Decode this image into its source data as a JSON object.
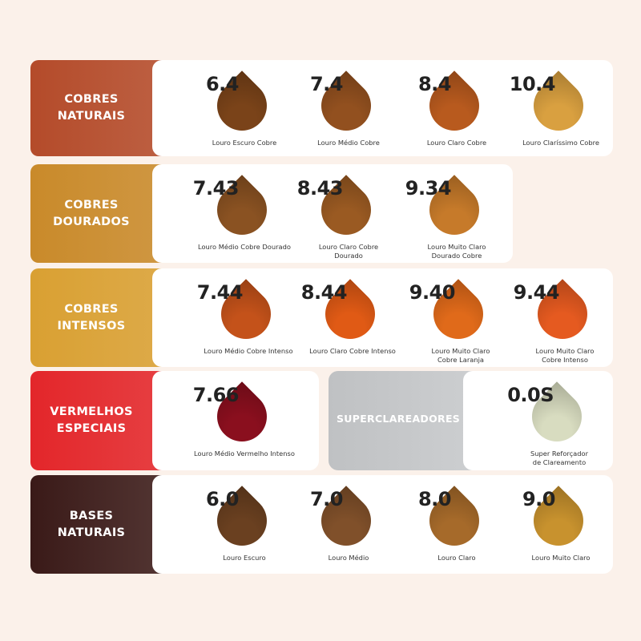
{
  "groups": [
    {
      "title": "COBRES\nNATURAIS",
      "color": "#b44b2a",
      "items": [
        {
          "code": "6.4",
          "name": "Louro Escuro Cobre",
          "swatch": "#7a4319"
        },
        {
          "code": "7.4",
          "name": "Louro Médio Cobre",
          "swatch": "#92501f"
        },
        {
          "code": "8.4",
          "name": "Louro Claro Cobre",
          "swatch": "#b85a1e"
        },
        {
          "code": "10.4",
          "name": "Louro Claríssimo Cobre",
          "swatch": "#d9a040"
        }
      ]
    },
    {
      "title": "COBRES\nDOURADOS",
      "color": "#c98a2a",
      "items": [
        {
          "code": "7.43",
          "name": "Louro Médio Cobre Dourado",
          "swatch": "#8a5222"
        },
        {
          "code": "8.43",
          "name": "Louro Claro Cobre\nDourado",
          "swatch": "#9a5a22"
        },
        {
          "code": "9.34",
          "name": "Louro Muito Claro\nDourado Cobre",
          "swatch": "#c67a2a"
        }
      ]
    },
    {
      "title": "COBRES\nINTENSOS",
      "color": "#d9a032",
      "items": [
        {
          "code": "7.44",
          "name": "Louro Médio Cobre Intenso",
          "swatch": "#c4521a"
        },
        {
          "code": "8.44",
          "name": "Louro Claro Cobre Intenso",
          "swatch": "#e05a15"
        },
        {
          "code": "9.40",
          "name": "Louro Muito Claro\nCobre Laranja",
          "swatch": "#e06a1a"
        },
        {
          "code": "9.44",
          "name": "Louro Muito Claro\nCobre Intenso",
          "swatch": "#e55a20"
        }
      ]
    },
    {
      "title": "VERMELHOS\nESPECIAIS",
      "color": "#e3262a",
      "items": [
        {
          "code": "7.66",
          "name": "Louro Médio Vermelho Intenso",
          "swatch": "#8a0f1e"
        }
      ]
    },
    {
      "title": "BASES\nNATURAIS",
      "color": "#3a1a18",
      "items": [
        {
          "code": "6.0",
          "name": "Louro Escuro",
          "swatch": "#6a4020"
        },
        {
          "code": "7.0",
          "name": "Louro Médio",
          "swatch": "#80502a"
        },
        {
          "code": "8.0",
          "name": "Louro Claro",
          "swatch": "#a66a2a"
        },
        {
          "code": "9.0",
          "name": "Louro Muito Claro",
          "swatch": "#c8922e"
        }
      ]
    }
  ],
  "superclareadores": {
    "title": "SUPERCLAREADORES",
    "color": "#c6c8ca",
    "item": {
      "code": "0.0S",
      "name": "Super Reforçador\nde Clareamento",
      "swatch": "#d8dcc0"
    }
  }
}
